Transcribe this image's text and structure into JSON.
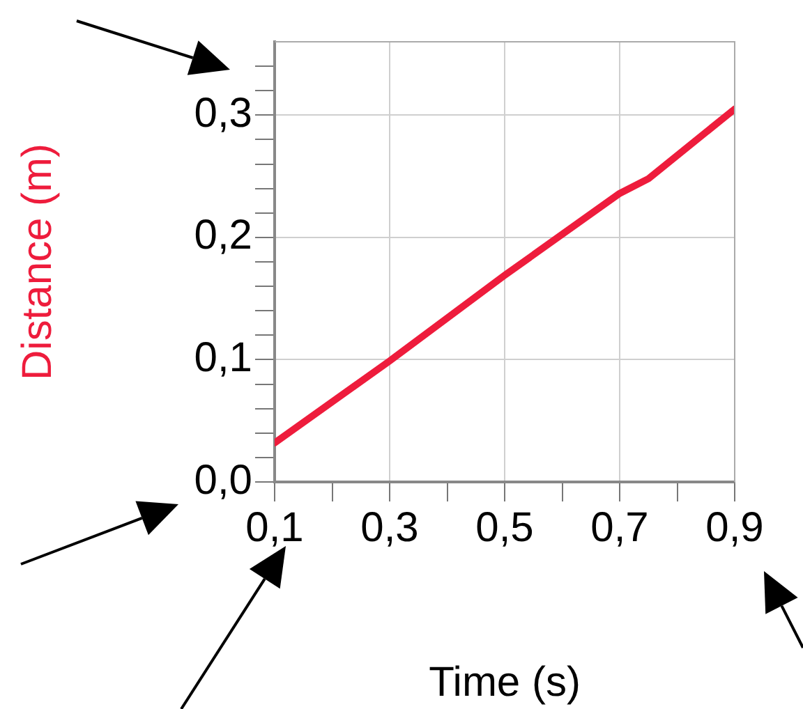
{
  "chart_data": {
    "type": "line",
    "xlabel": "Time (s)",
    "ylabel": "Distance (m)",
    "x": [
      0.1,
      0.3,
      0.5,
      0.7,
      0.75,
      0.9
    ],
    "series": [
      {
        "color": "#ee1c3c",
        "values": [
          0.032,
          0.099,
          0.169,
          0.236,
          0.248,
          0.305
        ]
      }
    ],
    "xlim": [
      0.1,
      0.9
    ],
    "xticks": [
      {
        "value": 0.1,
        "label": "0,1"
      },
      {
        "value": 0.2,
        "label": null
      },
      {
        "value": 0.3,
        "label": "0,3"
      },
      {
        "value": 0.4,
        "label": null
      },
      {
        "value": 0.5,
        "label": "0,5"
      },
      {
        "value": 0.6,
        "label": null
      },
      {
        "value": 0.7,
        "label": "0,7"
      },
      {
        "value": 0.8,
        "label": null
      },
      {
        "value": 0.9,
        "label": "0,9"
      }
    ],
    "ylim": [
      0,
      0.36
    ],
    "yticks": [
      {
        "value": 0,
        "label": "0,0"
      },
      {
        "value": 0.02,
        "label": null
      },
      {
        "value": 0.04,
        "label": null
      },
      {
        "value": 0.06,
        "label": null
      },
      {
        "value": 0.08,
        "label": null
      },
      {
        "value": 0.1,
        "label": "0,1"
      },
      {
        "value": 0.12,
        "label": null
      },
      {
        "value": 0.14,
        "label": null
      },
      {
        "value": 0.16,
        "label": null
      },
      {
        "value": 0.18,
        "label": null
      },
      {
        "value": 0.2,
        "label": "0,2"
      },
      {
        "value": 0.22,
        "label": null
      },
      {
        "value": 0.24,
        "label": null
      },
      {
        "value": 0.26,
        "label": null
      },
      {
        "value": 0.28,
        "label": null
      },
      {
        "value": 0.3,
        "label": "0,3"
      },
      {
        "value": 0.32,
        "label": null
      },
      {
        "value": 0.34,
        "label": null
      }
    ],
    "grid": true,
    "legend": false,
    "marker": "none",
    "line_style": "solid"
  }
}
